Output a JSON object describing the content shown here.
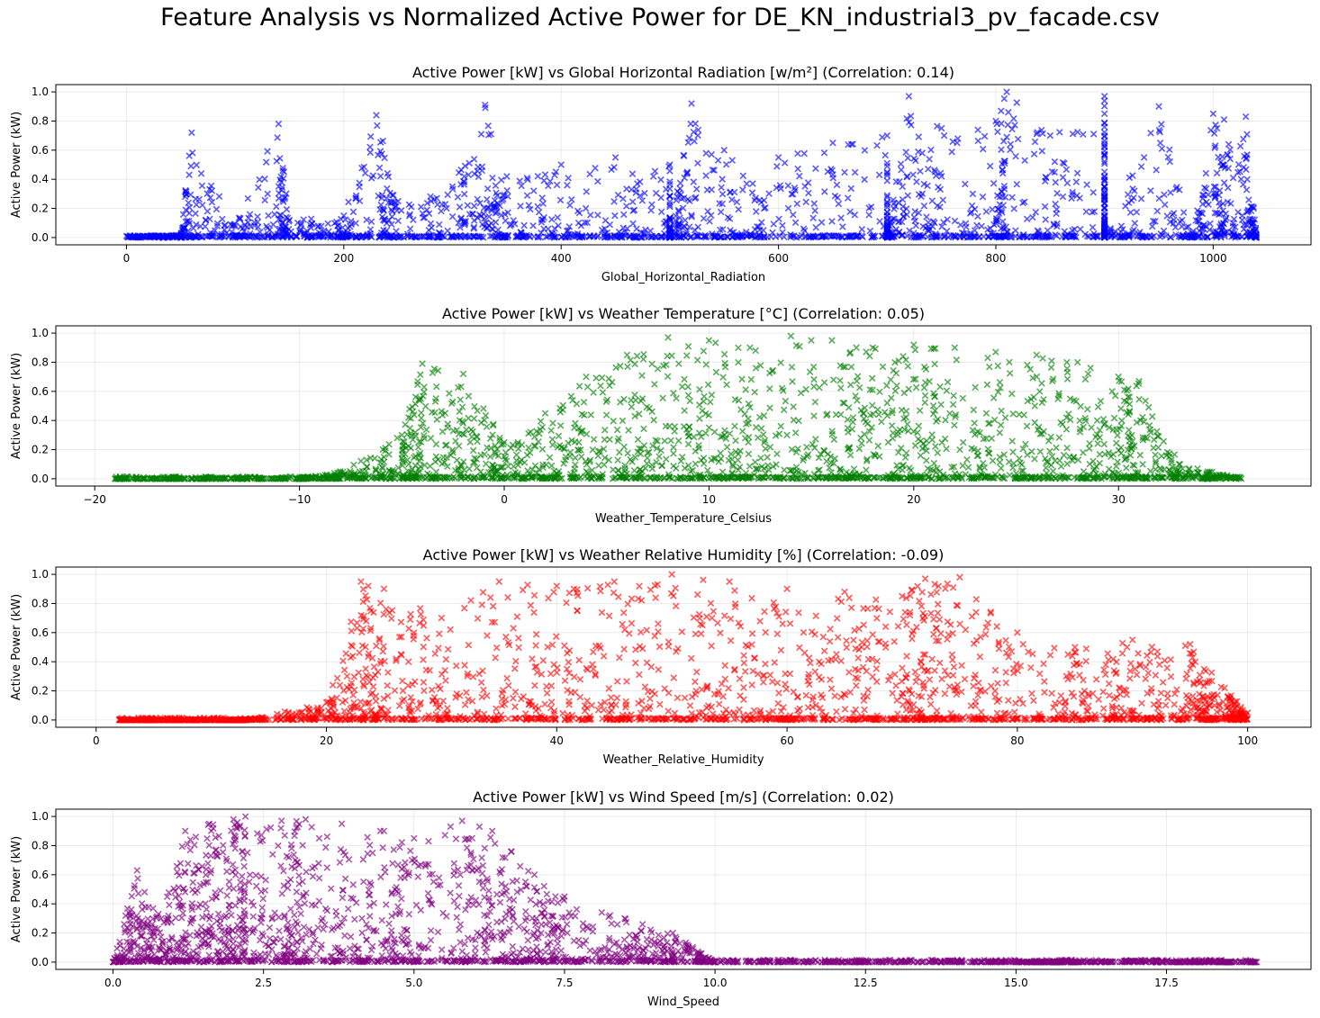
{
  "figure": {
    "title": "Feature Analysis vs Normalized Active Power for DE_KN_industrial3_pv_facade.csv"
  },
  "chart_data": [
    {
      "type": "scatter",
      "title": "Active Power [kW] vs Global Horizontal Radiation [w/m²] (Correlation: 0.14)",
      "xlabel": "Global_Horizontal_Radiation",
      "ylabel": "Active Power (kW)",
      "xlim": [
        -65,
        1090
      ],
      "ylim": [
        -0.05,
        1.05
      ],
      "xticks": [
        0,
        200,
        400,
        600,
        800,
        1000
      ],
      "xtick_labels": [
        "0",
        "200",
        "400",
        "600",
        "800",
        "1000"
      ],
      "yticks": [
        0.0,
        0.2,
        0.4,
        0.6,
        0.8,
        1.0
      ],
      "ytick_labels": [
        "0.0",
        "0.2",
        "0.4",
        "0.6",
        "0.8",
        "1.0"
      ],
      "marker": "x",
      "color": "#0000ff",
      "grid": true,
      "series": [
        {
          "points": [
            [
              0,
              0.01
            ],
            [
              50,
              0.02
            ],
            [
              100,
              0.08
            ],
            [
              150,
              0.12
            ],
            [
              200,
              0.15
            ],
            [
              250,
              0.25
            ],
            [
              300,
              0.35
            ],
            [
              350,
              0.42
            ],
            [
              400,
              0.5
            ],
            [
              450,
              0.55
            ],
            [
              500,
              0.5
            ],
            [
              550,
              0.6
            ],
            [
              600,
              0.55
            ],
            [
              650,
              0.65
            ],
            [
              700,
              0.7
            ],
            [
              750,
              0.75
            ],
            [
              800,
              0.8
            ],
            [
              850,
              0.7
            ],
            [
              900,
              0.85
            ],
            [
              950,
              0.9
            ],
            [
              1000,
              0.85
            ],
            [
              1040,
              0.0
            ],
            [
              60,
              0.72
            ],
            [
              140,
              0.78
            ],
            [
              230,
              0.84
            ],
            [
              330,
              0.91
            ],
            [
              520,
              0.92
            ],
            [
              720,
              0.97
            ],
            [
              810,
              1.0
            ],
            [
              900,
              0.97
            ],
            [
              1010,
              0.81
            ],
            [
              1030,
              0.83
            ],
            [
              700,
              0.0
            ],
            [
              500,
              0.0
            ],
            [
              900,
              0.0
            ],
            [
              980,
              0.0
            ]
          ]
        }
      ]
    },
    {
      "type": "scatter",
      "title": "Active Power [kW] vs Weather Temperature [°C] (Correlation: 0.05)",
      "xlabel": "Weather_Temperature_Celsius",
      "ylabel": "Active Power (kW)",
      "xlim": [
        -21.9,
        39.4
      ],
      "ylim": [
        -0.05,
        1.05
      ],
      "xticks": [
        -20,
        -10,
        0,
        10,
        20,
        30
      ],
      "xtick_labels": [
        "−20",
        "−10",
        "0",
        "10",
        "20",
        "30"
      ],
      "yticks": [
        0.0,
        0.2,
        0.4,
        0.6,
        0.8,
        1.0
      ],
      "ytick_labels": [
        "0.0",
        "0.2",
        "0.4",
        "0.6",
        "0.8",
        "1.0"
      ],
      "marker": "x",
      "color": "#008000",
      "grid": true,
      "series": [
        {
          "points": [
            [
              -19,
              0.0
            ],
            [
              -15,
              0.0
            ],
            [
              -10,
              0.0
            ],
            [
              -8,
              0.05
            ],
            [
              -5,
              0.3
            ],
            [
              -4,
              0.79
            ],
            [
              -2,
              0.72
            ],
            [
              0,
              0.25
            ],
            [
              2,
              0.45
            ],
            [
              4,
              0.7
            ],
            [
              6,
              0.85
            ],
            [
              8,
              0.97
            ],
            [
              10,
              0.95
            ],
            [
              12,
              0.9
            ],
            [
              14,
              0.98
            ],
            [
              16,
              0.95
            ],
            [
              18,
              0.9
            ],
            [
              20,
              0.92
            ],
            [
              22,
              0.9
            ],
            [
              24,
              0.87
            ],
            [
              26,
              0.85
            ],
            [
              28,
              0.8
            ],
            [
              30,
              0.7
            ],
            [
              31,
              0.67
            ],
            [
              33,
              0.1
            ],
            [
              36,
              0.0
            ]
          ]
        }
      ]
    },
    {
      "type": "scatter",
      "title": "Active Power [kW] vs Weather Relative Humidity [%] (Correlation: -0.09)",
      "xlabel": "Weather_Relative_Humidity",
      "ylabel": "Active Power (kW)",
      "xlim": [
        -3.5,
        105.5
      ],
      "ylim": [
        -0.05,
        1.05
      ],
      "xticks": [
        0,
        20,
        40,
        60,
        80,
        100
      ],
      "xtick_labels": [
        "0",
        "20",
        "40",
        "60",
        "80",
        "100"
      ],
      "yticks": [
        0.0,
        0.2,
        0.4,
        0.6,
        0.8,
        1.0
      ],
      "ytick_labels": [
        "0.0",
        "0.2",
        "0.4",
        "0.6",
        "0.8",
        "1.0"
      ],
      "marker": "x",
      "color": "#ff0000",
      "grid": true,
      "series": [
        {
          "points": [
            [
              2,
              0.0
            ],
            [
              5,
              0.0
            ],
            [
              8,
              0.0
            ],
            [
              11,
              0.0
            ],
            [
              13,
              0.0
            ],
            [
              20,
              0.12
            ],
            [
              23,
              0.95
            ],
            [
              25,
              0.9
            ],
            [
              30,
              0.7
            ],
            [
              35,
              0.95
            ],
            [
              40,
              0.92
            ],
            [
              45,
              0.95
            ],
            [
              50,
              1.0
            ],
            [
              55,
              0.95
            ],
            [
              60,
              0.9
            ],
            [
              65,
              0.88
            ],
            [
              70,
              0.85
            ],
            [
              72,
              0.97
            ],
            [
              75,
              0.98
            ],
            [
              80,
              0.6
            ],
            [
              85,
              0.5
            ],
            [
              90,
              0.55
            ],
            [
              95,
              0.52
            ],
            [
              98,
              0.22
            ],
            [
              100,
              0.05
            ]
          ]
        }
      ]
    },
    {
      "type": "scatter",
      "title": "Active Power [kW] vs Wind Speed [m/s] (Correlation: 0.02)",
      "xlabel": "Wind_Speed",
      "ylabel": "Active Power (kW)",
      "xlim": [
        -0.95,
        19.9
      ],
      "ylim": [
        -0.05,
        1.05
      ],
      "xticks": [
        0.0,
        2.5,
        5.0,
        7.5,
        10.0,
        12.5,
        15.0,
        17.5
      ],
      "xtick_labels": [
        "0.0",
        "2.5",
        "5.0",
        "7.5",
        "10.0",
        "12.5",
        "15.0",
        "17.5"
      ],
      "yticks": [
        0.0,
        0.2,
        0.4,
        0.6,
        0.8,
        1.0
      ],
      "ytick_labels": [
        "0.0",
        "0.2",
        "0.4",
        "0.6",
        "0.8",
        "1.0"
      ],
      "marker": "x",
      "color": "#800080",
      "grid": true,
      "series": [
        {
          "points": [
            [
              0.0,
              0.0
            ],
            [
              0.4,
              0.63
            ],
            [
              0.8,
              0.3
            ],
            [
              1.2,
              0.9
            ],
            [
              1.6,
              0.95
            ],
            [
              2.0,
              0.98
            ],
            [
              2.2,
              1.0
            ],
            [
              2.8,
              0.97
            ],
            [
              3.2,
              0.98
            ],
            [
              3.8,
              0.95
            ],
            [
              4.5,
              0.9
            ],
            [
              5.0,
              0.85
            ],
            [
              5.8,
              0.97
            ],
            [
              6.3,
              0.9
            ],
            [
              7.0,
              0.6
            ],
            [
              7.5,
              0.45
            ],
            [
              8.5,
              0.3
            ],
            [
              9.3,
              0.2
            ],
            [
              10.0,
              0.0
            ],
            [
              12.5,
              0.0
            ],
            [
              15.0,
              0.0
            ],
            [
              16.0,
              0.0
            ],
            [
              17.8,
              0.0
            ],
            [
              19.0,
              0.0
            ]
          ]
        }
      ]
    }
  ]
}
